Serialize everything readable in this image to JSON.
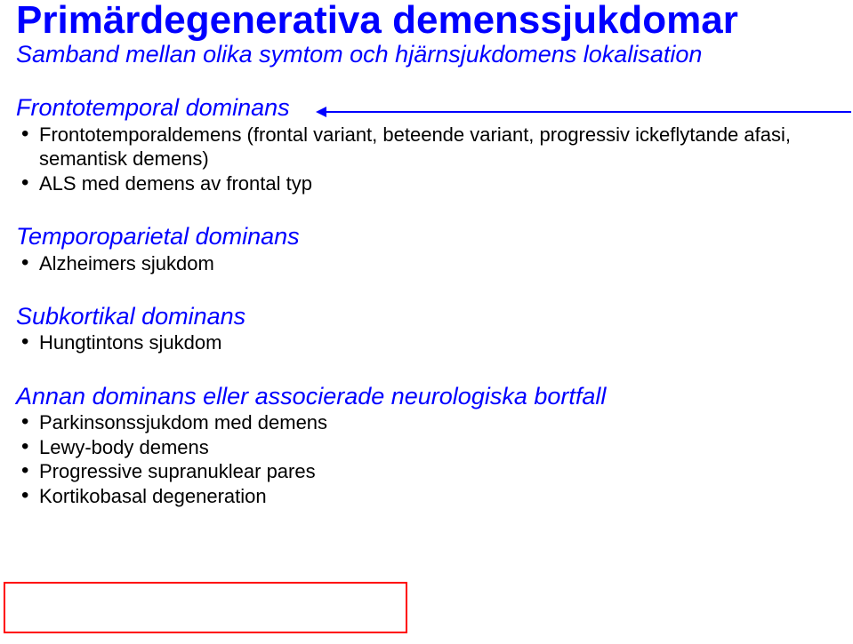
{
  "colors": {
    "title": "#0000ff",
    "subtitle": "#0000ff",
    "heading": "#0000ff",
    "body": "#000000",
    "arrow": "#0000ff",
    "box_border": "#ff0000",
    "background": "#ffffff"
  },
  "typography": {
    "title_fontsize": 44,
    "subtitle_fontsize": 27,
    "heading_fontsize": 27,
    "body_fontsize": 22,
    "title_weight": "bold",
    "heading_style": "italic",
    "subtitle_style": "italic",
    "font_family": "Arial"
  },
  "title": "Primärdegenerativa demenssjukdomar",
  "subtitle": "Samband mellan olika symtom och hjärnsjukdomens lokalisation",
  "sections": [
    {
      "heading": "Frontotemporal dominans",
      "items": [
        "Frontotemporaldemens (frontal variant, beteende variant, progressiv ickeflytande afasi, semantisk demens)",
        "ALS med demens av frontal typ"
      ]
    },
    {
      "heading": "Temporoparietal dominans",
      "items": [
        "Alzheimers sjukdom"
      ]
    },
    {
      "heading": "Subkortikal dominans",
      "items": [
        "Hungtintons sjukdom"
      ]
    },
    {
      "heading": "Annan dominans eller associerade neurologiska bortfall",
      "items": [
        "Parkinsonssjukdom med demens",
        "Lewy-body demens",
        "Progressive supranuklear pares",
        "Kortikobasal degeneration"
      ]
    }
  ],
  "annotations": {
    "arrow": {
      "points_to": "Frontotemporal dominans heading",
      "from": "right edge",
      "color": "#0000ff"
    },
    "red_box": {
      "around_items": [
        "Progressive supranuklear pares",
        "Kortikobasal degeneration"
      ],
      "border_color": "#ff0000",
      "border_width": 2
    }
  }
}
